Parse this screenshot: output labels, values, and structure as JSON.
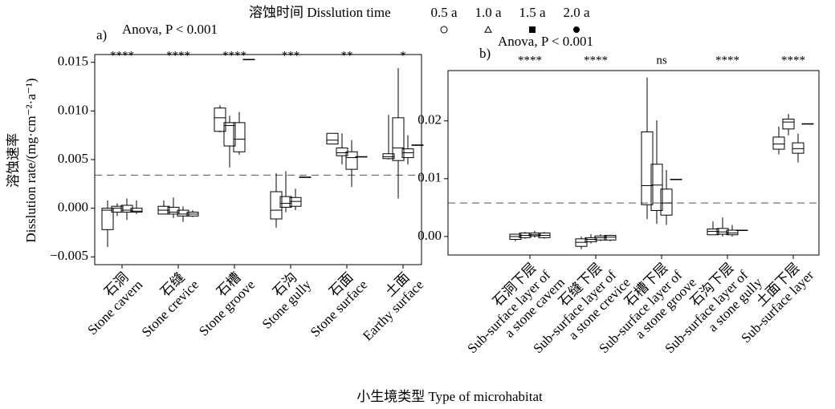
{
  "legend_title": "溶蚀时间 Disslution time",
  "xlabel": "小生境类型 Type of microhabitat",
  "ylabel": [
    "溶蚀速率",
    "Disslution rate/(mg·cm⁻²·a⁻¹)"
  ],
  "chart_data": [
    {
      "type": "box",
      "panel": "a)",
      "annotation": "Anova, P < 0.001",
      "categories": [
        [
          "石洞",
          "Stone cavern"
        ],
        [
          "石缝",
          "Stone crevice"
        ],
        [
          "石槽",
          "Stone groove"
        ],
        [
          "石沟",
          "Stone gully"
        ],
        [
          "石面",
          "Stone surface"
        ],
        [
          "土面",
          "Earthy surface"
        ]
      ],
      "significance": [
        "****",
        "****",
        "****",
        "***",
        "**",
        "*"
      ],
      "ylim": [
        -0.0058,
        0.0158
      ],
      "yticks": [
        {
          "value": -0.005,
          "label": "−0.005"
        },
        {
          "value": 0,
          "label": "0.000"
        },
        0.005,
        {
          "value": 0.01,
          "label": "0.010"
        },
        0.015
      ],
      "hline": 0.0034,
      "series": [
        {
          "name": "0.5 a",
          "color": "#000000",
          "marker": "open-circle",
          "values": [
            {
              "min": -0.004,
              "q1": -0.0022,
              "median": -0.0002,
              "q3": 0,
              "max": 0.0008
            },
            {
              "min": -0.0006,
              "q1": -0.0006,
              "median": -0.0002,
              "q3": 0.0002,
              "max": 0.0008
            },
            {
              "min": 0.0078,
              "q1": 0.0079,
              "median": 0.0093,
              "q3": 0.0103,
              "max": 0.0106
            },
            {
              "min": -0.002,
              "q1": -0.0011,
              "median": -0.0002,
              "q3": 0.0017,
              "max": 0.0036
            },
            {
              "min": 0.0066,
              "q1": 0.0066,
              "median": 0.007,
              "q3": 0.0077,
              "max": 0.0077
            },
            {
              "min": 0.005,
              "q1": 0.0051,
              "median": 0.0053,
              "q3": 0.0056,
              "max": 0.0096
            }
          ]
        },
        {
          "name": "1.0 a",
          "color": "#000000",
          "marker": "open-triangle",
          "values": [
            {
              "min": -0.0008,
              "q1": -0.0004,
              "median": 0,
              "q3": 0.0002,
              "max": 0.0005
            },
            {
              "min": -0.001,
              "q1": -0.0006,
              "median": -0.0004,
              "q3": 0.0001,
              "max": 0.0011
            },
            {
              "min": 0.0042,
              "q1": 0.0064,
              "median": 0.0085,
              "q3": 0.0088,
              "max": 0.0095
            },
            {
              "min": -0.0004,
              "q1": 0.0001,
              "median": 0.0005,
              "q3": 0.0012,
              "max": 0.0038
            },
            {
              "min": 0.0045,
              "q1": 0.0054,
              "median": 0.0057,
              "q3": 0.0062,
              "max": 0.0077
            },
            {
              "min": 0.001,
              "q1": 0.0049,
              "median": 0.0062,
              "q3": 0.0093,
              "max": 0.0144
            }
          ]
        },
        {
          "name": "1.5 a",
          "color": "#000000",
          "marker": "filled-square",
          "values": [
            {
              "min": -0.0012,
              "q1": -0.0004,
              "median": -0.0002,
              "q3": 0.0003,
              "max": 0.001
            },
            {
              "min": -0.0014,
              "q1": -0.0008,
              "median": -0.0006,
              "q3": -0.0002,
              "max": 0.0002
            },
            {
              "min": 0.0055,
              "q1": 0.0058,
              "median": 0.0071,
              "q3": 0.0088,
              "max": 0.0099
            },
            {
              "min": -0.0002,
              "q1": 0.0002,
              "median": 0.0007,
              "q3": 0.0011,
              "max": 0.002
            },
            {
              "min": 0.0022,
              "q1": 0.004,
              "median": 0.0052,
              "q3": 0.0058,
              "max": 0.007
            },
            {
              "min": 0.0045,
              "q1": 0.0052,
              "median": 0.0057,
              "q3": 0.0061,
              "max": 0.0075
            }
          ]
        },
        {
          "name": "2.0 a",
          "color": "#000000",
          "marker": "filled-circle",
          "values": [
            {
              "min": -0.0006,
              "q1": -0.0004,
              "median": -0.0003,
              "q3": 0,
              "max": 0.0008
            },
            {
              "min": -0.0009,
              "q1": -0.0008,
              "median": -0.0006,
              "q3": -0.0004,
              "max": -0.0002
            },
            {
              "min": 0.0153,
              "q1": 0.0153,
              "median": 0.0153,
              "q3": 0.0153,
              "max": 0.0153
            },
            {
              "min": 0.0032,
              "q1": 0.0032,
              "median": 0.0032,
              "q3": 0.0032,
              "max": 0.0032
            },
            {
              "min": 0.0053,
              "q1": 0.0053,
              "median": 0.0053,
              "q3": 0.0053,
              "max": 0.0053
            },
            {
              "min": 0.0065,
              "q1": 0.0065,
              "median": 0.0065,
              "q3": 0.0065,
              "max": 0.0065
            }
          ]
        }
      ]
    },
    {
      "type": "box",
      "panel": "b)",
      "annotation": "Anova, P < 0.001",
      "categories": [
        [
          "石洞下层",
          "Sub-surface layer of",
          "a stone cavern"
        ],
        [
          "石缝下层",
          "Sub-surface layer of",
          "a stone crevice"
        ],
        [
          "石槽下层",
          "Sub-surface layer of",
          "a stone groove"
        ],
        [
          "石沟下层",
          "Sub-surface layer of",
          "a stone gully"
        ],
        [
          "土面下层",
          "Sub-surface layer"
        ]
      ],
      "significance": [
        "****",
        "****",
        "ns",
        "****",
        "****"
      ],
      "ylim": [
        -0.0032,
        0.0287
      ],
      "yticks": [
        {
          "value": 0,
          "label": "0.00"
        },
        0.01,
        0.02
      ],
      "hline": 0.0058,
      "series": [
        {
          "name": "0.5 a",
          "color": "#000000",
          "marker": "open-circle",
          "values": [
            {
              "min": -0.0008,
              "q1": -0.0005,
              "median": 0,
              "q3": 0.0004,
              "max": 0.0004
            },
            {
              "min": -0.0022,
              "q1": -0.0017,
              "median": -0.001,
              "q3": -0.0004,
              "max": 0
            },
            {
              "min": 0.003,
              "q1": 0.0055,
              "median": 0.0088,
              "q3": 0.0181,
              "max": 0.0275
            },
            {
              "min": 0.0003,
              "q1": 0.0003,
              "median": 0.0009,
              "q3": 0.0013,
              "max": 0.0026
            },
            {
              "min": 0.0142,
              "q1": 0.0151,
              "median": 0.016,
              "q3": 0.0172,
              "max": 0.019
            }
          ]
        },
        {
          "name": "1.0 a",
          "color": "#000000",
          "marker": "open-triangle",
          "values": [
            {
              "min": -0.0004,
              "q1": -0.0002,
              "median": 0.0002,
              "q3": 0.0006,
              "max": 0.0008
            },
            {
              "min": -0.0012,
              "q1": -0.0009,
              "median": -0.0005,
              "q3": -0.0002,
              "max": 0.0004
            },
            {
              "min": 0.0022,
              "q1": 0.0045,
              "median": 0.0089,
              "q3": 0.0125,
              "max": 0.0201
            },
            {
              "min": 0,
              "q1": 0.0004,
              "median": 0.0008,
              "q3": 0.0014,
              "max": 0.0033
            },
            {
              "min": 0.0175,
              "q1": 0.0186,
              "median": 0.0198,
              "q3": 0.0203,
              "max": 0.0212
            }
          ]
        },
        {
          "name": "1.5 a",
          "color": "#000000",
          "marker": "filled-square",
          "values": [
            {
              "min": -0.0002,
              "q1": 0.0001,
              "median": 0.0003,
              "q3": 0.0006,
              "max": 0.001
            },
            {
              "min": -0.0008,
              "q1": -0.0006,
              "median": -0.0002,
              "q3": 0.0001,
              "max": 0.0004
            },
            {
              "min": 0.002,
              "q1": 0.0037,
              "median": 0.0058,
              "q3": 0.0082,
              "max": 0.0115
            },
            {
              "min": 0,
              "q1": 0.0003,
              "median": 0.0006,
              "q3": 0.0011,
              "max": 0.002
            },
            {
              "min": 0.0128,
              "q1": 0.0144,
              "median": 0.0152,
              "q3": 0.0162,
              "max": 0.0178
            }
          ]
        },
        {
          "name": "2.0 a",
          "color": "#000000",
          "marker": "filled-circle",
          "values": [
            {
              "min": -0.0004,
              "q1": -0.0002,
              "median": 0.0002,
              "q3": 0.0006,
              "max": 0.0008
            },
            {
              "min": -0.0008,
              "q1": -0.0006,
              "median": -0.0001,
              "q3": 0.0002,
              "max": 0.0003
            },
            {
              "min": 0.0099,
              "q1": 0.0099,
              "median": 0.0099,
              "q3": 0.0099,
              "max": 0.0099
            },
            {
              "min": 0.0011,
              "q1": 0.0011,
              "median": 0.0011,
              "q3": 0.0011,
              "max": 0.0011
            },
            {
              "min": 0.0195,
              "q1": 0.0195,
              "median": 0.0195,
              "q3": 0.0195,
              "max": 0.0195
            }
          ]
        }
      ]
    }
  ]
}
